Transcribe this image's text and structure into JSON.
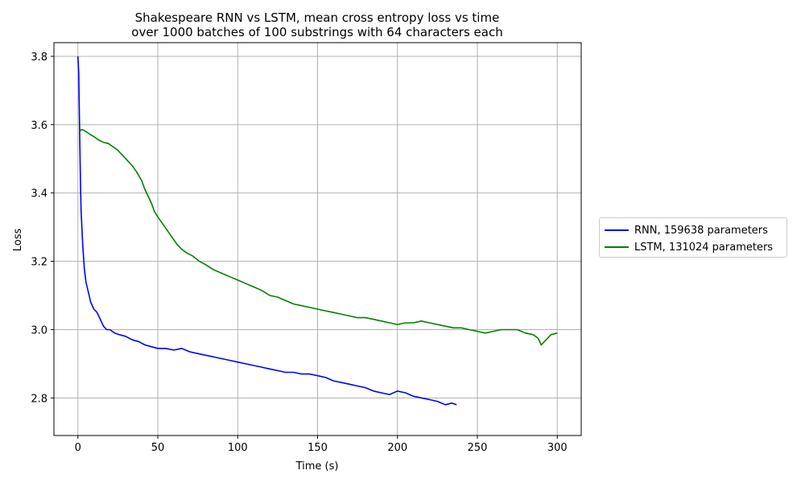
{
  "chart_data": {
    "type": "line",
    "title": "Shakespeare RNN vs LSTM, mean cross entropy loss vs time",
    "subtitle": "over 1000 batches of 100 substrings with 64 characters each",
    "xlabel": "Time (s)",
    "ylabel": "Loss",
    "xlim": [
      -15,
      315
    ],
    "ylim": [
      2.69,
      3.84
    ],
    "xticks": [
      0,
      50,
      100,
      150,
      200,
      250,
      300
    ],
    "xtick_labels": [
      "0",
      "50",
      "100",
      "150",
      "200",
      "250",
      "300"
    ],
    "yticks": [
      2.8,
      3.0,
      3.2,
      3.4,
      3.6,
      3.8
    ],
    "ytick_labels": [
      "2.8",
      "3.0",
      "3.2",
      "3.4",
      "3.6",
      "3.8"
    ],
    "grid": true,
    "legend_placement": "outside-right",
    "series": [
      {
        "name": "RNN, 159638 parameters",
        "color": "#0000ff",
        "x": [
          0,
          0.5,
          1,
          1.5,
          2,
          3,
          4,
          5,
          6,
          8,
          10,
          12,
          14,
          16,
          18,
          20,
          23,
          26,
          30,
          34,
          38,
          42,
          46,
          50,
          55,
          60,
          65,
          70,
          75,
          80,
          85,
          90,
          95,
          100,
          105,
          110,
          115,
          120,
          125,
          130,
          135,
          140,
          145,
          150,
          155,
          160,
          165,
          170,
          175,
          180,
          185,
          190,
          195,
          200,
          205,
          210,
          215,
          220,
          225,
          230,
          234,
          237
        ],
        "y": [
          3.8,
          3.75,
          3.6,
          3.45,
          3.35,
          3.25,
          3.18,
          3.14,
          3.12,
          3.08,
          3.06,
          3.05,
          3.03,
          3.01,
          3.0,
          3.0,
          2.99,
          2.985,
          2.98,
          2.97,
          2.965,
          2.955,
          2.95,
          2.945,
          2.945,
          2.94,
          2.945,
          2.935,
          2.93,
          2.925,
          2.92,
          2.915,
          2.91,
          2.905,
          2.9,
          2.895,
          2.89,
          2.885,
          2.88,
          2.875,
          2.875,
          2.87,
          2.87,
          2.865,
          2.86,
          2.85,
          2.845,
          2.84,
          2.835,
          2.83,
          2.82,
          2.815,
          2.81,
          2.82,
          2.815,
          2.805,
          2.8,
          2.795,
          2.79,
          2.78,
          2.785,
          2.78
        ]
      },
      {
        "name": "LSTM, 131024 parameters",
        "color": "#008000",
        "x": [
          1,
          2,
          3,
          5,
          8,
          10,
          13,
          16,
          19,
          22,
          25,
          28,
          31,
          34,
          37,
          40,
          42,
          44,
          46,
          48,
          50,
          53,
          56,
          59,
          62,
          65,
          68,
          72,
          76,
          80,
          85,
          90,
          95,
          100,
          105,
          110,
          115,
          120,
          125,
          130,
          135,
          140,
          145,
          150,
          155,
          160,
          165,
          170,
          175,
          180,
          185,
          190,
          195,
          200,
          205,
          210,
          215,
          220,
          225,
          230,
          235,
          240,
          245,
          250,
          255,
          260,
          265,
          270,
          275,
          280,
          285,
          288,
          290,
          293,
          296,
          300
        ],
        "y": [
          3.58,
          3.585,
          3.585,
          3.58,
          3.57,
          3.565,
          3.555,
          3.548,
          3.545,
          3.535,
          3.525,
          3.51,
          3.495,
          3.48,
          3.46,
          3.435,
          3.41,
          3.39,
          3.37,
          3.345,
          3.33,
          3.31,
          3.29,
          3.27,
          3.25,
          3.235,
          3.225,
          3.215,
          3.2,
          3.19,
          3.175,
          3.165,
          3.155,
          3.145,
          3.135,
          3.125,
          3.115,
          3.1,
          3.095,
          3.085,
          3.075,
          3.07,
          3.065,
          3.06,
          3.055,
          3.05,
          3.045,
          3.04,
          3.035,
          3.035,
          3.03,
          3.025,
          3.02,
          3.015,
          3.02,
          3.02,
          3.025,
          3.02,
          3.015,
          3.01,
          3.005,
          3.005,
          3.0,
          2.995,
          2.99,
          2.995,
          3.0,
          3.0,
          3.0,
          2.99,
          2.985,
          2.975,
          2.955,
          2.97,
          2.985,
          2.99
        ]
      }
    ]
  }
}
